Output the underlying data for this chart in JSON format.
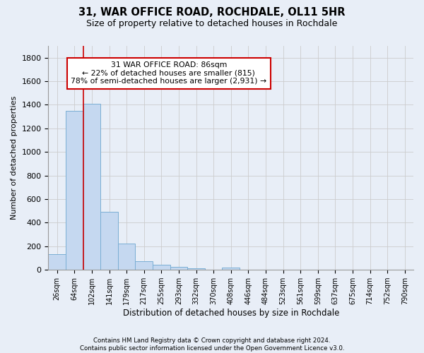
{
  "title1": "31, WAR OFFICE ROAD, ROCHDALE, OL11 5HR",
  "title2": "Size of property relative to detached houses in Rochdale",
  "xlabel": "Distribution of detached houses by size in Rochdale",
  "ylabel": "Number of detached properties",
  "footer": "Contains HM Land Registry data © Crown copyright and database right 2024.\nContains public sector information licensed under the Open Government Licence v3.0.",
  "bar_labels": [
    "26sqm",
    "64sqm",
    "102sqm",
    "141sqm",
    "179sqm",
    "217sqm",
    "255sqm",
    "293sqm",
    "332sqm",
    "370sqm",
    "408sqm",
    "446sqm",
    "484sqm",
    "523sqm",
    "561sqm",
    "599sqm",
    "637sqm",
    "675sqm",
    "714sqm",
    "752sqm",
    "790sqm"
  ],
  "bar_values": [
    135,
    1350,
    1410,
    490,
    225,
    75,
    42,
    28,
    15,
    0,
    18,
    0,
    0,
    0,
    0,
    0,
    0,
    0,
    0,
    0,
    0
  ],
  "bar_color": "#c5d8f0",
  "bar_edge_color": "#7aaed4",
  "ylim": [
    0,
    1900
  ],
  "yticks": [
    0,
    200,
    400,
    600,
    800,
    1000,
    1200,
    1400,
    1600,
    1800
  ],
  "property_line_x": 1.5,
  "annotation_line1": "31 WAR OFFICE ROAD: 86sqm",
  "annotation_line2": "← 22% of detached houses are smaller (815)",
  "annotation_line3": "78% of semi-detached houses are larger (2,931) →",
  "annotation_box_color": "#ffffff",
  "annotation_box_edge": "#cc0000",
  "property_line_color": "#cc0000",
  "grid_color": "#cccccc",
  "background_color": "#e8eef7"
}
